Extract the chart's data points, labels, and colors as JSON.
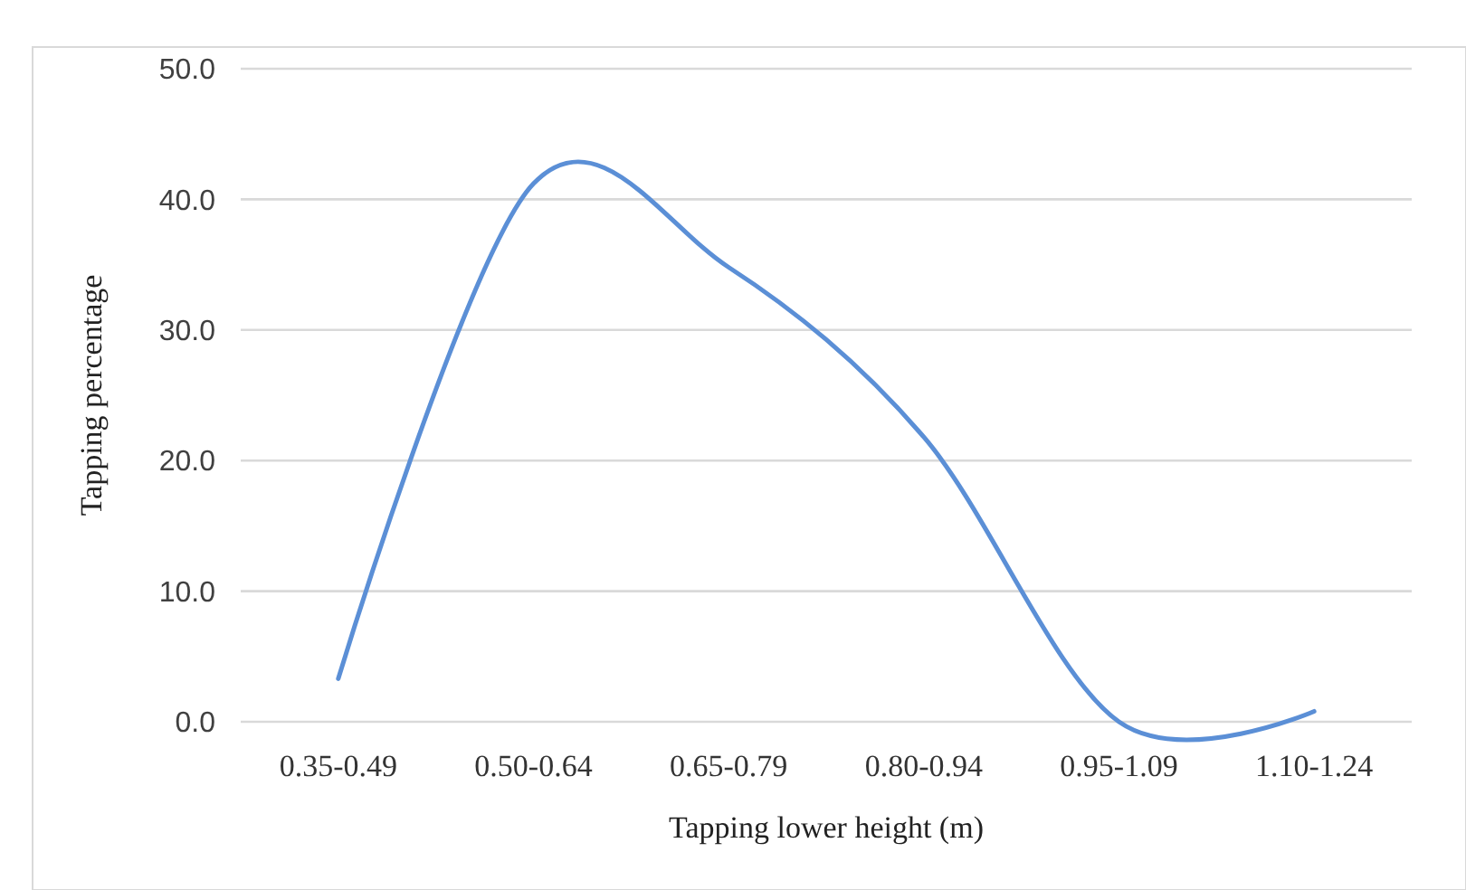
{
  "chart_data": {
    "type": "line",
    "xlabel": "Tapping lower height (m)",
    "ylabel": "Tapping percentage",
    "categories": [
      "0.35-0.49",
      "0.50-0.64",
      "0.65-0.79",
      "0.80-0.94",
      "0.95-1.09",
      "1.10-1.24"
    ],
    "series": [
      {
        "color": "#5b8fd6",
        "values": [
          3.3,
          41.2,
          34.8,
          21.8,
          0.0,
          0.8
        ]
      }
    ],
    "ylim": [
      0,
      50
    ],
    "yticks": [
      {
        "value": 0,
        "label": "0.0"
      },
      {
        "value": 10,
        "label": "10.0"
      },
      {
        "value": 20,
        "label": "20.0"
      },
      {
        "value": 30,
        "label": "30.0"
      },
      {
        "value": 40,
        "label": "40.0"
      },
      {
        "value": 50,
        "label": "50.0"
      }
    ],
    "grid": "y",
    "marker": "none",
    "line_style": "solid"
  }
}
